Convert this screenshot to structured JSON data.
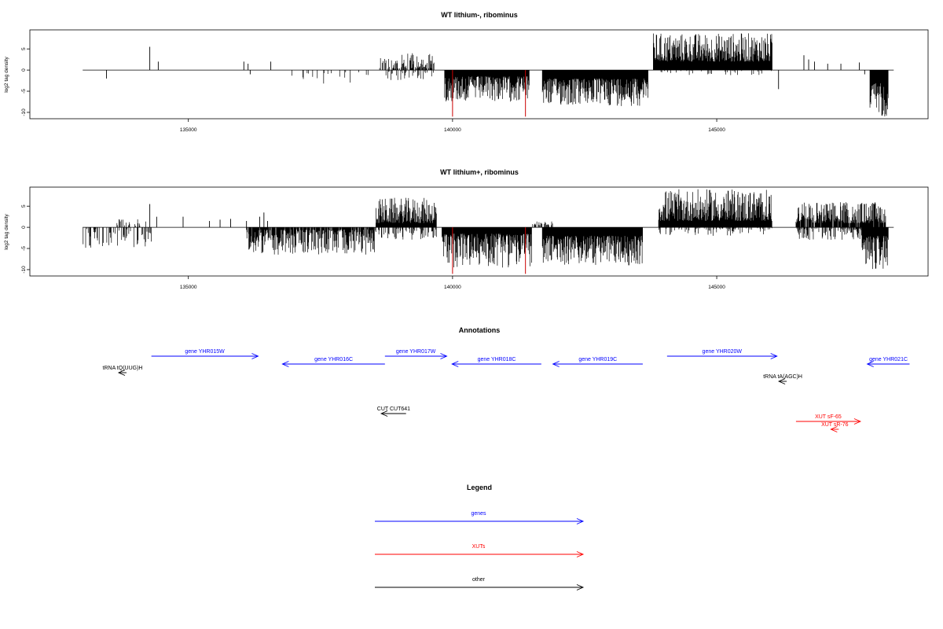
{
  "chart_data": [
    {
      "type": "bar",
      "title": "WT lithium-, ribominus",
      "ylabel": "log2 tag density",
      "xlim": [
        132000,
        149000
      ],
      "ylim": [
        -11.5,
        9.5
      ],
      "xticks": [
        135000,
        140000,
        145000
      ],
      "yticks": [
        5,
        0,
        -5,
        -10
      ],
      "grid": false,
      "series_color": "#000000",
      "marker_color": "#cc0000",
      "markers": [
        140000,
        141380
      ],
      "spikes": [
        {
          "x": 133450,
          "y": -2
        },
        {
          "x": 134270,
          "y": 5.5
        },
        {
          "x": 134430,
          "y": 2
        },
        {
          "x": 136050,
          "y": 2
        },
        {
          "x": 136130,
          "y": 1.5
        },
        {
          "x": 136170,
          "y": -1
        },
        {
          "x": 136560,
          "y": 2
        },
        {
          "x": 146170,
          "y": -4.5
        },
        {
          "x": 146650,
          "y": 3.5
        },
        {
          "x": 146740,
          "y": 2.5
        },
        {
          "x": 146850,
          "y": 2
        },
        {
          "x": 147100,
          "y": 1.5
        },
        {
          "x": 147350,
          "y": 1.5
        },
        {
          "x": 147700,
          "y": 1.8
        },
        {
          "x": 147800,
          "y": -1
        }
      ],
      "segments": [
        {
          "start": 136800,
          "end": 138400,
          "sign": -1,
          "min": 0.4,
          "max": 3.5,
          "density": 0.12
        },
        {
          "start": 138620,
          "end": 139000,
          "sign": 1,
          "min": 0.3,
          "max": 3,
          "density": 0.5
        },
        {
          "start": 139000,
          "end": 139650,
          "sign": 1,
          "min": 0.4,
          "max": 4,
          "density": 0.7
        },
        {
          "start": 138620,
          "end": 139650,
          "sign": -1,
          "min": 0.3,
          "max": 2.5,
          "density": 0.25
        },
        {
          "start": 139850,
          "end": 141450,
          "sign": -1,
          "min": 1.5,
          "max": 7.5,
          "density": 1
        },
        {
          "start": 141700,
          "end": 143700,
          "sign": -1,
          "min": 2,
          "max": 8.5,
          "density": 1
        },
        {
          "start": 143800,
          "end": 146050,
          "sign": 1,
          "min": 2,
          "max": 8.8,
          "density": 1
        },
        {
          "start": 143800,
          "end": 146050,
          "sign": -1,
          "min": 0.2,
          "max": 1.2,
          "density": 0.1
        },
        {
          "start": 147900,
          "end": 148250,
          "sign": -1,
          "min": 3,
          "max": 11,
          "density": 1
        }
      ]
    },
    {
      "type": "bar",
      "title": "WT lithium+, ribominus",
      "ylabel": "log2 tag density",
      "xlim": [
        132000,
        149000
      ],
      "ylim": [
        -11.5,
        9.5
      ],
      "xticks": [
        135000,
        140000,
        145000
      ],
      "yticks": [
        5,
        0,
        -5,
        -10
      ],
      "grid": false,
      "series_color": "#000000",
      "marker_color": "#cc0000",
      "markers": [
        140000,
        141380
      ],
      "spikes": [
        {
          "x": 134270,
          "y": 5.5
        },
        {
          "x": 134400,
          "y": 2.5
        },
        {
          "x": 134900,
          "y": 2.5
        },
        {
          "x": 135400,
          "y": 1.5
        },
        {
          "x": 135600,
          "y": 1.8
        },
        {
          "x": 135800,
          "y": 2
        },
        {
          "x": 136100,
          "y": 1.5
        },
        {
          "x": 136350,
          "y": 2.5
        },
        {
          "x": 136430,
          "y": 3.5
        },
        {
          "x": 136500,
          "y": 1.5
        }
      ],
      "segments": [
        {
          "start": 133000,
          "end": 134300,
          "sign": -1,
          "min": 0.3,
          "max": 5,
          "density": 0.35
        },
        {
          "start": 133600,
          "end": 134200,
          "sign": 1,
          "min": 0.3,
          "max": 2,
          "density": 0.25
        },
        {
          "start": 136100,
          "end": 138550,
          "sign": -1,
          "min": 0.5,
          "max": 6.5,
          "density": 0.85
        },
        {
          "start": 138550,
          "end": 139700,
          "sign": 1,
          "min": 1,
          "max": 7,
          "density": 1
        },
        {
          "start": 138550,
          "end": 139700,
          "sign": -1,
          "min": 0.3,
          "max": 3,
          "density": 0.3
        },
        {
          "start": 139800,
          "end": 141500,
          "sign": -1,
          "min": 1.5,
          "max": 9.5,
          "density": 1
        },
        {
          "start": 141500,
          "end": 141900,
          "sign": 1,
          "min": 0.5,
          "max": 2,
          "density": 0.4
        },
        {
          "start": 141700,
          "end": 143600,
          "sign": -1,
          "min": 2,
          "max": 9,
          "density": 1
        },
        {
          "start": 143900,
          "end": 146050,
          "sign": 1,
          "min": 1.5,
          "max": 9,
          "density": 1
        },
        {
          "start": 143900,
          "end": 146050,
          "sign": -1,
          "min": 0.2,
          "max": 2,
          "density": 0.25
        },
        {
          "start": 146500,
          "end": 148200,
          "sign": 1,
          "min": 1,
          "max": 6,
          "density": 0.9
        },
        {
          "start": 146500,
          "end": 148200,
          "sign": -1,
          "min": 0.3,
          "max": 3,
          "density": 0.4
        },
        {
          "start": 147750,
          "end": 148250,
          "sign": -1,
          "min": 2,
          "max": 10,
          "density": 1
        }
      ]
    }
  ],
  "annotations": {
    "title": "Annotations",
    "features": [
      {
        "label": "gene YHR015W",
        "start": 134300,
        "end": 136320,
        "strand": "+",
        "color": "#0000ff",
        "row": 1
      },
      {
        "label": "gene YHR016C",
        "start": 136780,
        "end": 138720,
        "strand": "-",
        "color": "#0000ff",
        "row": 2
      },
      {
        "label": "gene YHR017W",
        "start": 138720,
        "end": 139890,
        "strand": "+",
        "color": "#0000ff",
        "row": 1
      },
      {
        "label": "gene YHR018C",
        "start": 139990,
        "end": 141680,
        "strand": "-",
        "color": "#0000ff",
        "row": 2
      },
      {
        "label": "gene YHR019C",
        "start": 141900,
        "end": 143600,
        "strand": "-",
        "color": "#0000ff",
        "row": 2
      },
      {
        "label": "gene YHR020W",
        "start": 144060,
        "end": 146140,
        "strand": "+",
        "color": "#0000ff",
        "row": 1
      },
      {
        "label": "gene YHR021C",
        "start": 147850,
        "end": 148650,
        "strand": "-",
        "color": "#0000ff",
        "row": 2
      },
      {
        "label": "tRNA tQ(UUG)H",
        "start": 133710,
        "end": 133800,
        "strand": "-",
        "color": "#000000",
        "row": 3
      },
      {
        "label": "tRNA tA(AGC)H",
        "start": 146200,
        "end": 146300,
        "strand": "-",
        "color": "#000000",
        "row": 4
      },
      {
        "label": "CUT CUT641",
        "start": 138650,
        "end": 139120,
        "strand": "-",
        "color": "#000000",
        "row": 5
      },
      {
        "label": "XUT sF-65",
        "start": 146500,
        "end": 147720,
        "strand": "+",
        "color": "#ff0000",
        "row": 6
      },
      {
        "label": "XUT sR-76",
        "start": 147170,
        "end": 147300,
        "strand": "-",
        "color": "#ff0000",
        "row": 7
      }
    ]
  },
  "legend": {
    "title": "Legend",
    "items": [
      {
        "label": "genes",
        "color": "#0000ff"
      },
      {
        "label": "XUTs",
        "color": "#ff0000"
      },
      {
        "label": "other",
        "color": "#000000"
      }
    ]
  }
}
